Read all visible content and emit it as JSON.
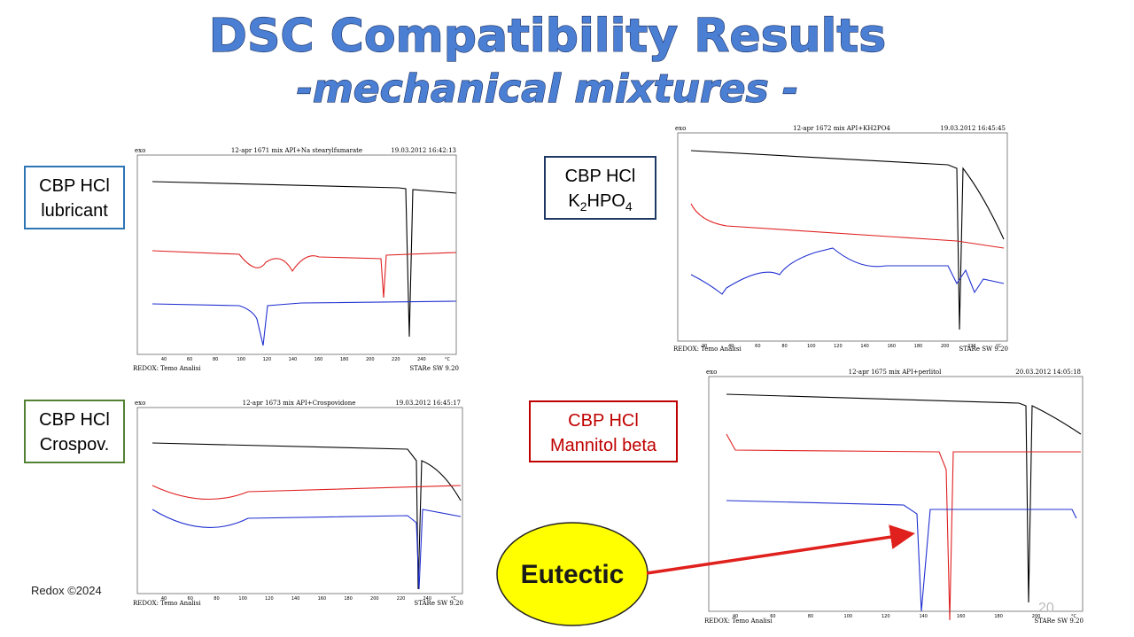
{
  "title": "DSC Compatibility Results",
  "subtitle": "-mechanical mixtures -",
  "panels": [
    {
      "label": [
        "CBP HCl",
        "lubricant"
      ],
      "exo": "exo",
      "header": "12-apr 1671 mix API+Na stearylfumarate",
      "date": "19.03.2012 16:42:13",
      "footer_left": "REDOX: Temo Analisi",
      "footer_right": "STARe SW 9.20",
      "x_ticks": [
        "40",
        "60",
        "80",
        "100",
        "120",
        "140",
        "160",
        "180",
        "200",
        "220",
        "240",
        "°C"
      ]
    },
    {
      "label": [
        "CBP HCl",
        "K",
        "2",
        "HPO",
        "4"
      ],
      "exo": "exo",
      "header": "12-apr 1672 mix API+KH2PO4",
      "date": "19.03.2012 16:45:45",
      "footer_left": "REDOX: Temo Analisi",
      "footer_right": "STARe SW 9.20",
      "x_ticks": [
        "20",
        "40",
        "60",
        "80",
        "100",
        "120",
        "140",
        "160",
        "180",
        "200",
        "220",
        "°C"
      ]
    },
    {
      "label": [
        "CBP HCl",
        "Crospov."
      ],
      "exo": "exo",
      "header": "12-apr 1673 mix API+Crospovidone",
      "date": "19.03.2012 16:45:17",
      "footer_left": "REDOX: Temo Analisi",
      "footer_right": "STARe SW 9.20",
      "x_ticks": [
        "40",
        "60",
        "80",
        "100",
        "120",
        "140",
        "160",
        "180",
        "200",
        "220",
        "240",
        "°C"
      ]
    },
    {
      "label": [
        "CBP HCl",
        "Mannitol beta"
      ],
      "exo": "exo",
      "header": "12-apr 1675 mix API+perlitol",
      "date": "20.03.2012 14:05:18",
      "footer_left": "REDOX: Temo Analisi",
      "footer_right": "STARe SW 9.20",
      "x_ticks": [
        "40",
        "60",
        "80",
        "100",
        "120",
        "140",
        "160",
        "180",
        "200",
        "°C"
      ]
    }
  ],
  "callout": "Eutectic",
  "footer": "Redox ©2024",
  "page_number": "20"
}
